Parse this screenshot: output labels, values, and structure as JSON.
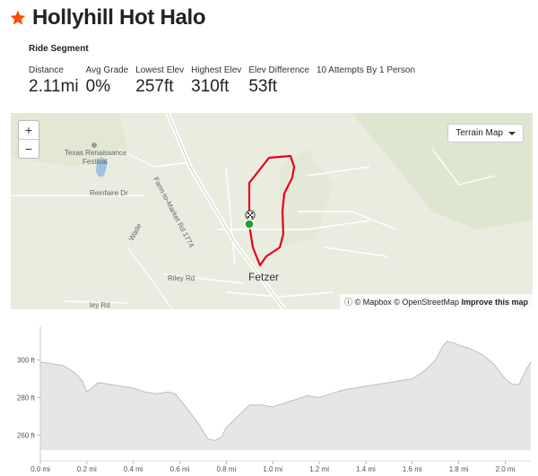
{
  "segment": {
    "title": "Hollyhill Hot Halo",
    "subtitle": "Ride Segment"
  },
  "stats": [
    {
      "label": "Distance",
      "value": "2.11mi"
    },
    {
      "label": "Avg Grade",
      "value": "0%"
    },
    {
      "label": "Lowest Elev",
      "value": "257ft"
    },
    {
      "label": "Highest Elev",
      "value": "310ft"
    },
    {
      "label": "Elev Difference",
      "value": "53ft"
    }
  ],
  "attempts": "10 Attempts By 1 Person",
  "map": {
    "zoom_in": "+",
    "zoom_out": "−",
    "style_dropdown": "Terrain Map",
    "attribution": {
      "mapbox": "© Mapbox",
      "osm": "© OpenStreetMap",
      "improve": "Improve this map"
    },
    "labels": {
      "festival_1": "Texas Renaissance",
      "festival_2": "Festival",
      "reinfaire": "Reinfaire Dr",
      "fm": "Farm-to-Market Rd 1774",
      "wade": "Wade",
      "riley": "Riley Rd",
      "ley": "ley Rd",
      "town": "Fetzer"
    },
    "colors": {
      "route": "#e8001c",
      "start": "#1fa02c"
    }
  },
  "chart_data": {
    "type": "area",
    "title": "",
    "xlabel": "",
    "ylabel": "",
    "x_ticks": [
      "0.0 mi",
      "0.2 mi",
      "0.4 mi",
      "0.6 mi",
      "0.8 mi",
      "1.0 mi",
      "1.2 mi",
      "1.4 mi",
      "1.6 mi",
      "1.8 mi",
      "2.0 mi"
    ],
    "y_ticks": [
      "300 ft",
      "280 ft",
      "260 ft"
    ],
    "xlim": [
      0,
      2.11
    ],
    "ylim": [
      252,
      318
    ],
    "grid": true,
    "x": [
      0.0,
      0.05,
      0.1,
      0.15,
      0.18,
      0.2,
      0.22,
      0.25,
      0.3,
      0.35,
      0.4,
      0.45,
      0.5,
      0.55,
      0.58,
      0.6,
      0.62,
      0.65,
      0.68,
      0.7,
      0.72,
      0.75,
      0.78,
      0.8,
      0.85,
      0.9,
      0.95,
      1.0,
      1.05,
      1.1,
      1.15,
      1.2,
      1.25,
      1.3,
      1.35,
      1.4,
      1.45,
      1.5,
      1.55,
      1.6,
      1.65,
      1.7,
      1.73,
      1.75,
      1.78,
      1.8,
      1.85,
      1.9,
      1.95,
      2.0,
      2.03,
      2.06,
      2.09,
      2.11
    ],
    "values": [
      299,
      298,
      297,
      293,
      289,
      283,
      285,
      288,
      287,
      286,
      285,
      283,
      282,
      283,
      282,
      279,
      276,
      271,
      266,
      262,
      258,
      257,
      259,
      264,
      270,
      276,
      276,
      275,
      277,
      279,
      281,
      280,
      282,
      284,
      285,
      286,
      287,
      288,
      289,
      290,
      294,
      300,
      307,
      310,
      309,
      308,
      306,
      303,
      298,
      290,
      287,
      287,
      295,
      299
    ],
    "fill": "#e6e6e6",
    "stroke": "#bdbdbd"
  }
}
